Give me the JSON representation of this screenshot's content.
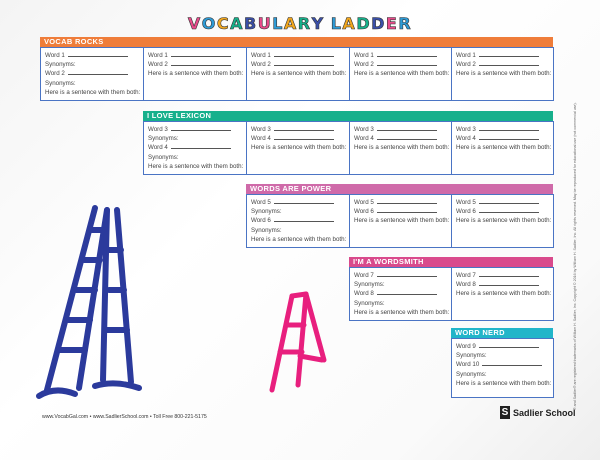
{
  "title": "VOCABULARY LADDER",
  "title_colors": [
    "#e94a8b",
    "#2e9bd6",
    "#f3a81e",
    "#16b08a",
    "#3a4fa8",
    "#e94a8b",
    "#2e9bd6",
    "#f3a81e",
    "#16b08a",
    "#3a4fa8",
    "#e94a8b",
    "#2e9bd6",
    "#f3a81e",
    "#16b08a",
    "#3a4fa8",
    "#e94a8b",
    "#2e9bd6"
  ],
  "sections": [
    {
      "label": "VOCAB ROCKS",
      "color": "#ef7d3a"
    },
    {
      "label": "I LOVE LEXICON",
      "color": "#17b08c"
    },
    {
      "label": "WORDS ARE POWER",
      "color": "#cf6aa9"
    },
    {
      "label": "I'M A WORDSMITH",
      "color": "#d94a8c"
    },
    {
      "label": "WORD NERD",
      "color": "#21b5c9"
    }
  ],
  "labels": {
    "word1": "Word 1",
    "word2": "Word 2",
    "word3": "Word 3",
    "word4": "Word 4",
    "word5": "Word 5",
    "word6": "Word 6",
    "word7": "Word 7",
    "word8": "Word 8",
    "word9": "Word 9",
    "word10": "Word 10",
    "synonyms": "Synonyms:",
    "sentence": "Here is a sentence with them both:"
  },
  "footer": "www.VocabGal.com  •  www.SadlierSchool.com  •  Toll Free 800-221-5175",
  "brand": "Sadlier School",
  "legal": "® and Sadlier® are registered trademarks of William H. Sadlier, Inc. Copyright © 2016 by William H. Sadlier, Inc. All rights reserved. May be reproduced for educational use (not commercial use).",
  "ladder_colors": {
    "blue": "#2b3a9c",
    "pink": "#e81f7e"
  }
}
